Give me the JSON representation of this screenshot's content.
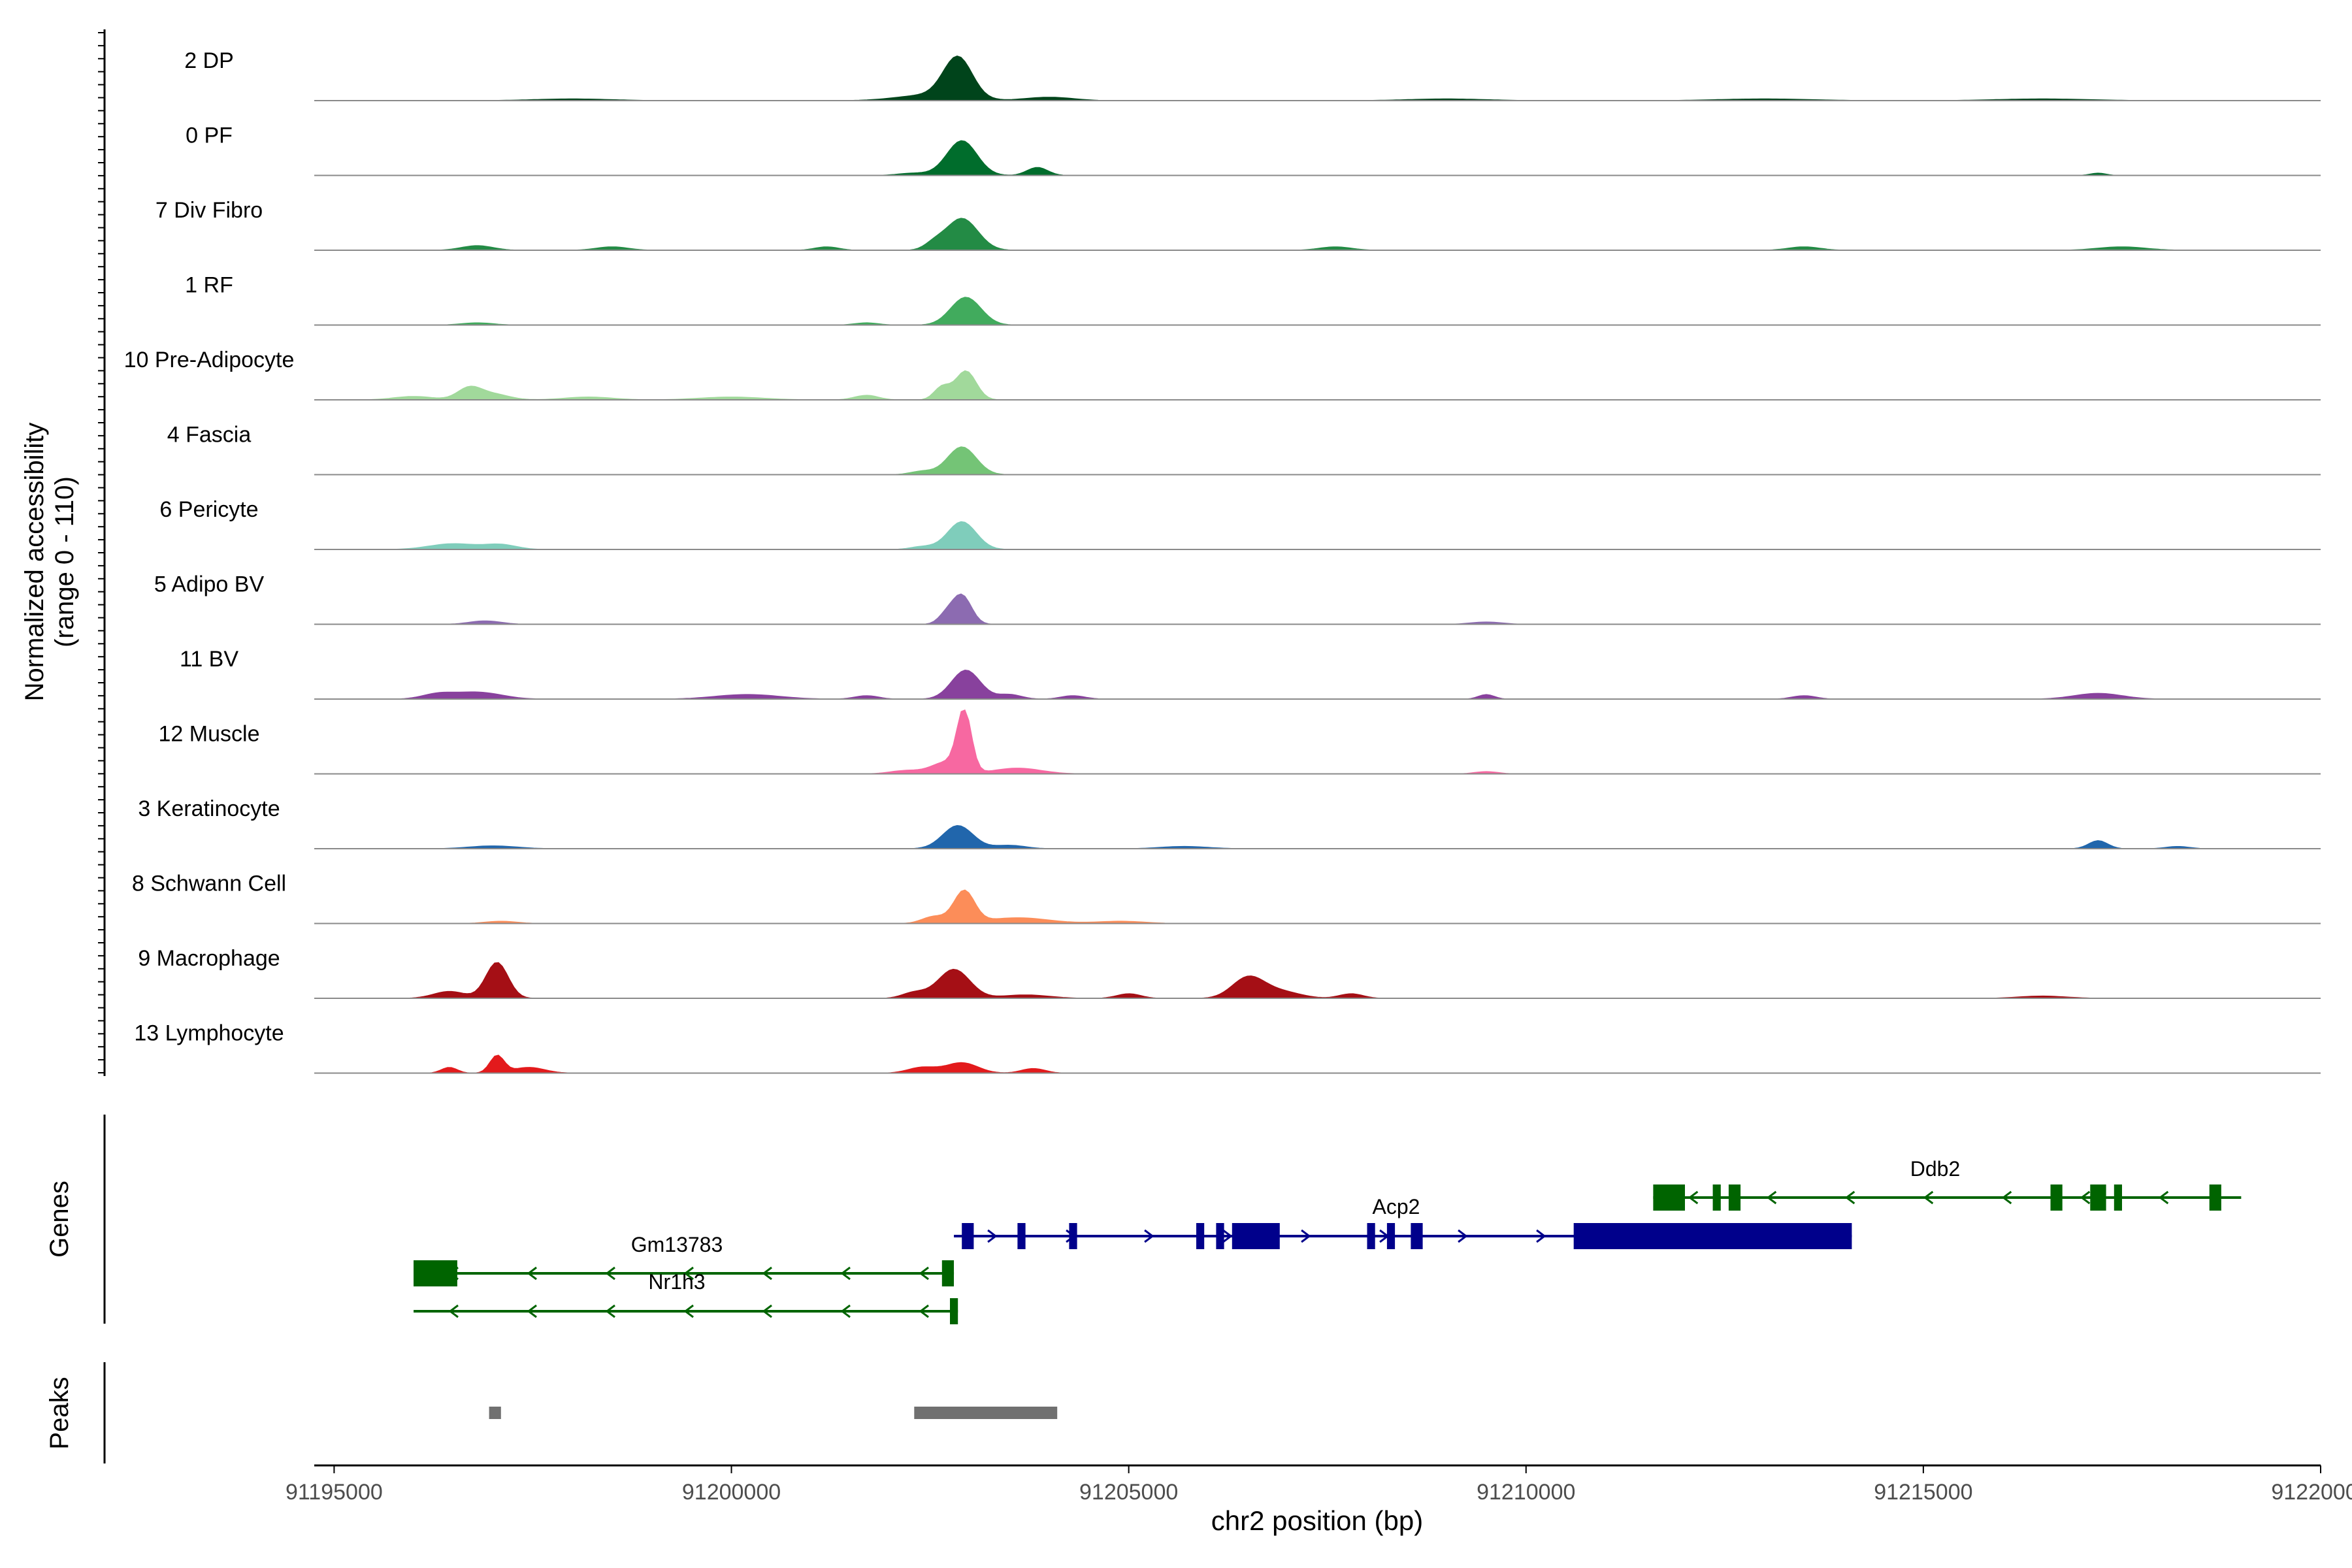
{
  "chart_data": {
    "type": "area",
    "title": "",
    "ylabel_lines": [
      "Normalized accessibility",
      "(range 0 - 110)"
    ],
    "y_range": [
      0,
      110
    ],
    "xlabel": "chr2 position (bp)",
    "chromosome": "chr2",
    "x_range": [
      91194750,
      91220000
    ],
    "x_ticks": [
      91195000,
      91200000,
      91205000,
      91210000,
      91215000,
      91220000
    ],
    "x_tick_labels": [
      "91195000",
      "91200000",
      "91205000",
      "91210000",
      "91215000",
      "91220000"
    ],
    "series": [
      {
        "name": "2 DP",
        "color": "#00441b",
        "peaks": [
          [
            91202850,
            180,
            70
          ],
          [
            91202500,
            400,
            10
          ],
          [
            91204000,
            300,
            6
          ],
          [
            91198000,
            500,
            3
          ],
          [
            91209000,
            500,
            3
          ],
          [
            91213000,
            600,
            3
          ],
          [
            91216500,
            600,
            3
          ]
        ]
      },
      {
        "name": "0 PF",
        "color": "#006d2c",
        "peaks": [
          [
            91202900,
            190,
            60
          ],
          [
            91203850,
            130,
            14
          ],
          [
            91202300,
            200,
            4
          ],
          [
            91217200,
            100,
            4
          ]
        ]
      },
      {
        "name": "7 Div Fibro",
        "color": "#238b45",
        "peaks": [
          [
            91202900,
            200,
            55
          ],
          [
            91202550,
            120,
            10
          ],
          [
            91196800,
            200,
            8
          ],
          [
            91198500,
            200,
            6
          ],
          [
            91201200,
            150,
            6
          ],
          [
            91207600,
            200,
            6
          ],
          [
            91213500,
            200,
            6
          ],
          [
            91217500,
            300,
            6
          ]
        ]
      },
      {
        "name": "1 RF",
        "color": "#41ab5d",
        "peaks": [
          [
            91202950,
            190,
            48
          ],
          [
            91201700,
            150,
            4
          ],
          [
            91196800,
            200,
            4
          ]
        ]
      },
      {
        "name": "10 Pre-Adipocyte",
        "color": "#a1d99b",
        "peaks": [
          [
            91202950,
            130,
            50
          ],
          [
            91202650,
            100,
            22
          ],
          [
            91196700,
            150,
            20
          ],
          [
            91197000,
            200,
            10
          ],
          [
            91196000,
            250,
            6
          ],
          [
            91198200,
            300,
            5
          ],
          [
            91200000,
            400,
            5
          ],
          [
            91201700,
            150,
            8
          ]
        ]
      },
      {
        "name": "4 Fascia",
        "color": "#74c476",
        "peaks": [
          [
            91202900,
            180,
            48
          ],
          [
            91202400,
            150,
            6
          ]
        ]
      },
      {
        "name": "6 Pericyte",
        "color": "#7fcdbb",
        "peaks": [
          [
            91202900,
            180,
            48
          ],
          [
            91196500,
            300,
            10
          ],
          [
            91197100,
            200,
            8
          ],
          [
            91202400,
            150,
            5
          ]
        ]
      },
      {
        "name": "5 Adipo BV",
        "color": "#8c6bb1",
        "peaks": [
          [
            91202900,
            120,
            50
          ],
          [
            91202700,
            100,
            15
          ],
          [
            91196900,
            200,
            6
          ],
          [
            91209500,
            200,
            4
          ]
        ]
      },
      {
        "name": "11 BV",
        "color": "#88419d",
        "peaks": [
          [
            91202950,
            180,
            50
          ],
          [
            91196800,
            300,
            12
          ],
          [
            91196300,
            200,
            8
          ],
          [
            91200200,
            400,
            8
          ],
          [
            91201700,
            150,
            6
          ],
          [
            91203500,
            150,
            8
          ],
          [
            91204300,
            150,
            6
          ],
          [
            91209500,
            100,
            8
          ],
          [
            91213500,
            150,
            6
          ],
          [
            91217200,
            300,
            10
          ]
        ]
      },
      {
        "name": "12 Muscle",
        "color": "#f768a1",
        "peaks": [
          [
            91202930,
            90,
            105
          ],
          [
            91202700,
            180,
            20
          ],
          [
            91203600,
            300,
            10
          ],
          [
            91202200,
            200,
            6
          ],
          [
            91209500,
            150,
            4
          ]
        ]
      },
      {
        "name": "3 Keratinocyte",
        "color": "#2166ac",
        "peaks": [
          [
            91202850,
            190,
            40
          ],
          [
            91217200,
            120,
            14
          ],
          [
            91197000,
            300,
            5
          ],
          [
            91203500,
            200,
            6
          ],
          [
            91205700,
            300,
            4
          ],
          [
            91218200,
            150,
            4
          ]
        ]
      },
      {
        "name": "8 Schwann Cell",
        "color": "#fc8d59",
        "peaks": [
          [
            91202930,
            130,
            55
          ],
          [
            91202550,
            150,
            12
          ],
          [
            91203600,
            400,
            10
          ],
          [
            91197100,
            200,
            4
          ],
          [
            91204900,
            300,
            4
          ]
        ]
      },
      {
        "name": "9 Macrophage",
        "color": "#a50f15",
        "peaks": [
          [
            91197050,
            140,
            62
          ],
          [
            91196450,
            200,
            12
          ],
          [
            91202800,
            200,
            50
          ],
          [
            91202300,
            150,
            10
          ],
          [
            91206500,
            200,
            35
          ],
          [
            91206900,
            250,
            12
          ],
          [
            91205000,
            150,
            8
          ],
          [
            91207800,
            150,
            8
          ],
          [
            91203700,
            300,
            6
          ],
          [
            91216500,
            300,
            4
          ]
        ]
      },
      {
        "name": "13 Lymphocyte",
        "color": "#e31a1c",
        "peaks": [
          [
            91197050,
            90,
            30
          ],
          [
            91196450,
            100,
            10
          ],
          [
            91197450,
            200,
            10
          ],
          [
            91202900,
            200,
            18
          ],
          [
            91202400,
            180,
            10
          ],
          [
            91203800,
            150,
            8
          ]
        ]
      }
    ],
    "genes_panel_label": "Genes",
    "genes": [
      {
        "name": "Ddb2",
        "strand": "-",
        "color": "#006400",
        "start": 91211600,
        "end": 91219000,
        "exons": [
          [
            91211600,
            91212000
          ],
          [
            91212350,
            91212450
          ],
          [
            91212550,
            91212700
          ],
          [
            91216600,
            91216750
          ],
          [
            91217100,
            91217300
          ],
          [
            91217400,
            91217500
          ],
          [
            91218600,
            91218750
          ]
        ]
      },
      {
        "name": "Acp2",
        "strand": "+",
        "color": "#00008b",
        "start": 91202800,
        "end": 91214100,
        "exons": [
          [
            91202900,
            91203050
          ],
          [
            91203600,
            91203700
          ],
          [
            91204250,
            91204350
          ],
          [
            91205850,
            91205950
          ],
          [
            91206100,
            91206200
          ],
          [
            91206300,
            91206900
          ],
          [
            91208000,
            91208100
          ],
          [
            91208250,
            91208350
          ],
          [
            91208550,
            91208700
          ],
          [
            91210600,
            91214100
          ]
        ]
      },
      {
        "name": "Gm13783",
        "strand": "-",
        "color": "#006400",
        "start": 91196000,
        "end": 91202800,
        "exons": [
          [
            91196000,
            91196550
          ],
          [
            91202650,
            91202800
          ]
        ]
      },
      {
        "name": "Nr1h3",
        "strand": "-",
        "color": "#006400",
        "start": 91196000,
        "end": 91202850,
        "exons": [
          [
            91202750,
            91202850
          ]
        ]
      }
    ],
    "peaks_panel_label": "Peaks",
    "called_peaks": [
      [
        91196950,
        91197100
      ],
      [
        91202300,
        91204100
      ]
    ]
  }
}
